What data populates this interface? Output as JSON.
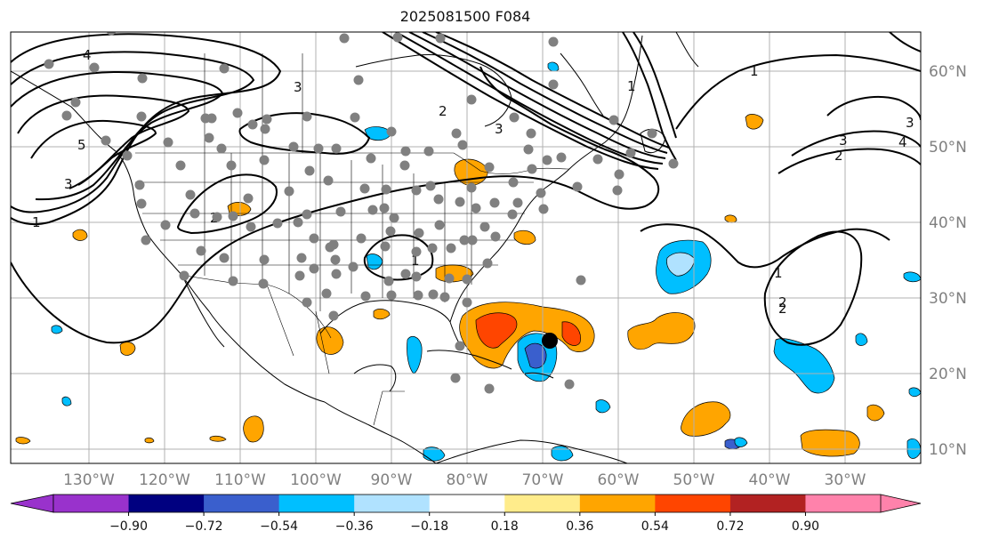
{
  "title": "2025081500 F084",
  "lat_labels": [
    "60°N",
    "50°N",
    "40°N",
    "30°N",
    "20°N",
    "10°N"
  ],
  "lon_labels": [
    "130°W",
    "120°W",
    "110°W",
    "100°W",
    "90°W",
    "80°W",
    "70°W",
    "60°W",
    "50°W",
    "40°W",
    "30°W"
  ],
  "colorbar": {
    "colors": [
      "#9932cc",
      "#000080",
      "#3a5fcd",
      "#00bfff",
      "#b0e2ff",
      "#ffffff",
      "#ffec8b",
      "#ffa500",
      "#ff4500",
      "#b22222",
      "#ff82ab"
    ],
    "under_color": "#9932cc",
    "over_color": "#ff82ab",
    "tick_labels": [
      "−0.90",
      "−0.72",
      "−0.54",
      "−0.36",
      "−0.18",
      "0.18",
      "0.36",
      "0.54",
      "0.72",
      "0.90"
    ]
  },
  "contour_labels": [
    "4",
    "5",
    "3",
    "1",
    "2",
    "3",
    "1",
    "2",
    "3",
    "1",
    "3",
    "2",
    "1",
    "2",
    "3",
    "4",
    "1",
    "2"
  ],
  "storm_marker_color": "#000000",
  "station_color": "#808080"
}
